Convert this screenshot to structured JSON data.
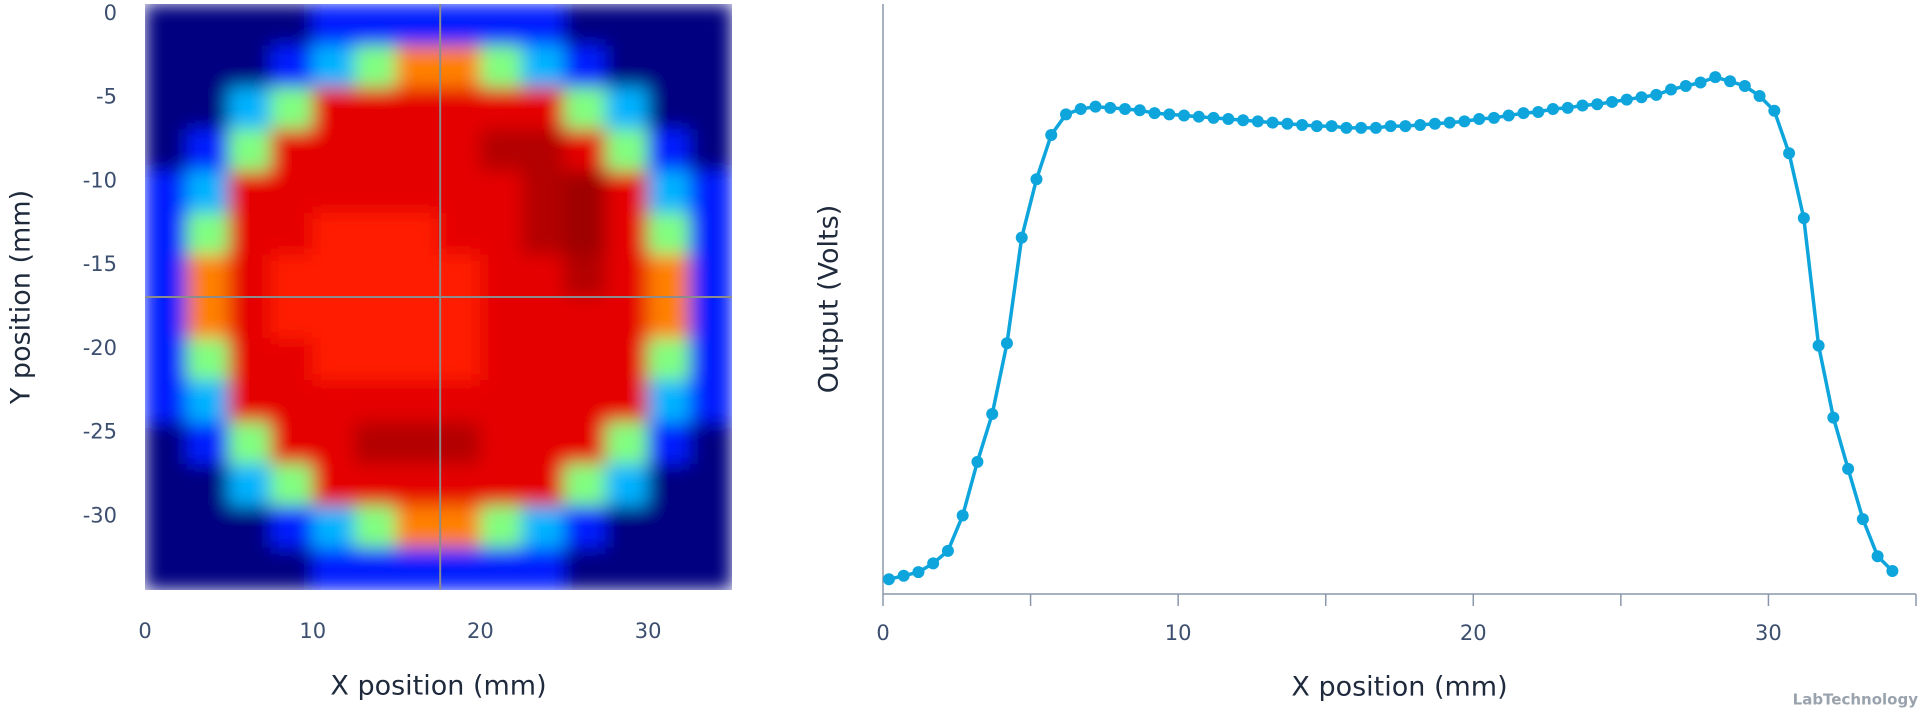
{
  "chart_data": [
    {
      "type": "heatmap",
      "xlabel": "X position (mm)",
      "ylabel": "Y position (mm)",
      "xlim": [
        0,
        35
      ],
      "ylim": [
        -35,
        0
      ],
      "xticks": [
        0,
        10,
        20,
        30
      ],
      "yticks": [
        0,
        -5,
        -10,
        -15,
        -20,
        -25,
        -30
      ],
      "colormap": "jet",
      "crosshair": {
        "x": 17.6,
        "y": -17.5
      },
      "x": [
        1.25,
        3.75,
        6.25,
        8.75,
        11.25,
        13.75,
        16.25,
        18.75,
        21.25,
        23.75,
        26.25,
        28.75,
        31.25,
        33.75
      ],
      "y": [
        -1.25,
        -3.75,
        -6.25,
        -8.75,
        -11.25,
        -13.75,
        -16.25,
        -18.75,
        -21.25,
        -23.75,
        -26.25,
        -28.75,
        -31.25,
        -33.75
      ],
      "values": [
        [
          0,
          0,
          0,
          0,
          0.15,
          0.15,
          0.15,
          0.15,
          0.15,
          0.15,
          0,
          0,
          0,
          0
        ],
        [
          0,
          0,
          0,
          0.15,
          0.3,
          0.5,
          0.75,
          0.75,
          0.5,
          0.3,
          0.15,
          0,
          0,
          0
        ],
        [
          0,
          0,
          0.3,
          0.5,
          0.9,
          0.9,
          0.9,
          0.9,
          0.9,
          0.9,
          0.5,
          0.3,
          0,
          0
        ],
        [
          0,
          0.15,
          0.5,
          0.9,
          0.9,
          0.9,
          0.9,
          0.9,
          0.95,
          0.95,
          0.9,
          0.5,
          0.15,
          0
        ],
        [
          0.15,
          0.3,
          0.9,
          0.9,
          0.9,
          0.9,
          0.9,
          0.9,
          0.9,
          0.95,
          0.97,
          0.9,
          0.3,
          0.15
        ],
        [
          0.15,
          0.5,
          0.9,
          0.9,
          0.85,
          0.85,
          0.85,
          0.9,
          0.9,
          0.95,
          0.97,
          0.9,
          0.5,
          0.15
        ],
        [
          0.15,
          0.75,
          0.9,
          0.85,
          0.85,
          0.85,
          0.85,
          0.85,
          0.9,
          0.9,
          0.95,
          0.9,
          0.75,
          0.15
        ],
        [
          0.15,
          0.75,
          0.9,
          0.85,
          0.85,
          0.85,
          0.85,
          0.85,
          0.9,
          0.9,
          0.9,
          0.9,
          0.75,
          0.15
        ],
        [
          0.15,
          0.5,
          0.9,
          0.9,
          0.85,
          0.85,
          0.85,
          0.85,
          0.9,
          0.9,
          0.9,
          0.9,
          0.5,
          0.15
        ],
        [
          0.15,
          0.3,
          0.9,
          0.9,
          0.9,
          0.9,
          0.9,
          0.9,
          0.9,
          0.9,
          0.9,
          0.9,
          0.3,
          0.15
        ],
        [
          0,
          0.15,
          0.5,
          0.9,
          0.9,
          0.95,
          0.95,
          0.95,
          0.9,
          0.9,
          0.9,
          0.5,
          0.15,
          0
        ],
        [
          0,
          0,
          0.3,
          0.5,
          0.9,
          0.9,
          0.9,
          0.9,
          0.9,
          0.9,
          0.5,
          0.3,
          0,
          0
        ],
        [
          0,
          0,
          0,
          0.15,
          0.3,
          0.5,
          0.75,
          0.75,
          0.5,
          0.3,
          0.15,
          0,
          0,
          0
        ],
        [
          0,
          0,
          0,
          0,
          0.15,
          0.15,
          0.15,
          0.15,
          0.15,
          0.15,
          0,
          0,
          0,
          0
        ]
      ]
    },
    {
      "type": "line",
      "xlabel": "X position (mm)",
      "ylabel": "Output (Volts)",
      "xlim": [
        0,
        35
      ],
      "ylim": [
        0,
        1
      ],
      "xticks": [
        0,
        10,
        20,
        30
      ],
      "minor_xticks": [
        5,
        15,
        25,
        35
      ],
      "color": "#0ea5dc",
      "x": [
        0.2,
        0.7,
        1.2,
        1.7,
        2.2,
        2.7,
        3.2,
        3.7,
        4.2,
        4.7,
        5.2,
        5.7,
        6.2,
        6.7,
        7.2,
        7.7,
        8.2,
        8.7,
        9.2,
        9.7,
        10.2,
        10.7,
        11.2,
        11.7,
        12.2,
        12.7,
        13.2,
        13.7,
        14.2,
        14.7,
        15.2,
        15.7,
        16.2,
        16.7,
        17.2,
        17.7,
        18.2,
        18.7,
        19.2,
        19.7,
        20.2,
        20.7,
        21.2,
        21.7,
        22.2,
        22.7,
        23.2,
        23.7,
        24.2,
        24.7,
        25.2,
        25.7,
        26.2,
        26.7,
        27.2,
        27.7,
        28.2,
        28.7,
        29.2,
        29.7,
        30.2,
        30.7,
        31.2,
        31.7,
        32.2,
        32.7,
        33.2,
        33.7,
        34.2
      ],
      "values": [
        0.025,
        0.031,
        0.037,
        0.052,
        0.073,
        0.133,
        0.224,
        0.305,
        0.425,
        0.604,
        0.703,
        0.778,
        0.813,
        0.822,
        0.826,
        0.824,
        0.822,
        0.82,
        0.815,
        0.813,
        0.811,
        0.809,
        0.807,
        0.805,
        0.803,
        0.801,
        0.799,
        0.797,
        0.795,
        0.793,
        0.793,
        0.79,
        0.79,
        0.79,
        0.793,
        0.793,
        0.795,
        0.797,
        0.799,
        0.801,
        0.805,
        0.807,
        0.811,
        0.815,
        0.817,
        0.822,
        0.824,
        0.828,
        0.83,
        0.834,
        0.838,
        0.842,
        0.846,
        0.855,
        0.861,
        0.867,
        0.876,
        0.869,
        0.861,
        0.844,
        0.819,
        0.747,
        0.637,
        0.421,
        0.299,
        0.212,
        0.127,
        0.064,
        0.039
      ]
    }
  ],
  "watermark": "LabTechnology"
}
